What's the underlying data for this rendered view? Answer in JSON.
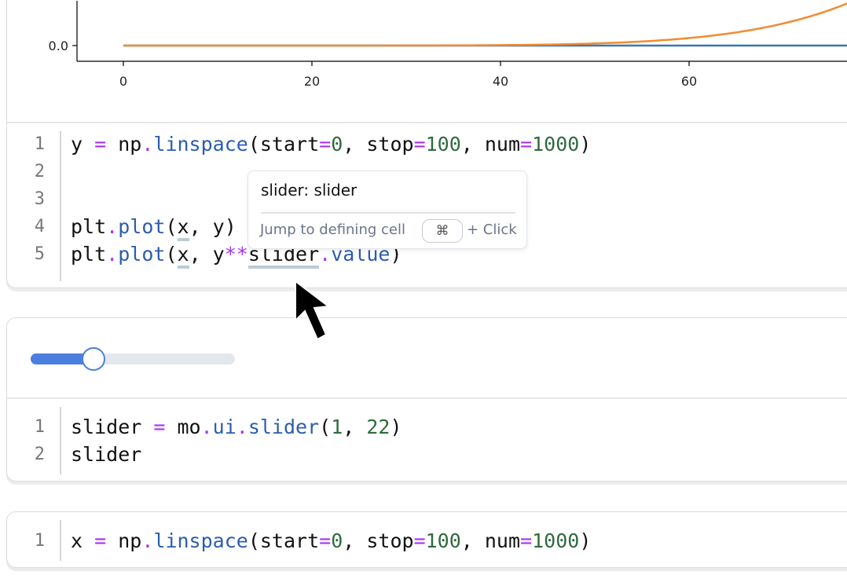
{
  "chart_data": {
    "type": "line",
    "x_ticks": [
      "0",
      "20",
      "40",
      "60"
    ],
    "y_ticks": [
      "0.0"
    ],
    "xlim": [
      -5,
      100
    ],
    "series": [
      {
        "expression": "y",
        "color": "#3a76b0",
        "x": [
          0,
          100
        ],
        "y": [
          0,
          100
        ]
      },
      {
        "expression": "y**slider.value",
        "color": "#f28b30",
        "exponent": 7
      }
    ],
    "grid": false
  },
  "cells": [
    {
      "lines": [
        [
          [
            "y ",
            ""
          ],
          [
            "=",
            "t-op"
          ],
          [
            " np",
            ""
          ],
          [
            ".",
            "t-op"
          ],
          [
            "linspace",
            "t-fn"
          ],
          [
            "(start",
            ""
          ],
          [
            "=",
            "t-op"
          ],
          [
            "0",
            "t-num"
          ],
          [
            ", stop",
            ""
          ],
          [
            "=",
            "t-op"
          ],
          [
            "100",
            "t-num"
          ],
          [
            ", num",
            ""
          ],
          [
            "=",
            "t-op"
          ],
          [
            "1000",
            "t-num"
          ],
          [
            ")",
            ""
          ]
        ],
        [],
        [],
        [
          [
            "plt",
            ""
          ],
          [
            ".",
            "t-op"
          ],
          [
            "plot",
            "t-fn"
          ],
          [
            "(",
            ""
          ],
          [
            "x",
            "t-ul"
          ],
          [
            ", y)",
            ""
          ]
        ],
        [
          [
            "plt",
            ""
          ],
          [
            ".",
            "t-op"
          ],
          [
            "plot",
            "t-fn"
          ],
          [
            "(",
            ""
          ],
          [
            "x",
            "t-ul"
          ],
          [
            ", y",
            ""
          ],
          [
            "**",
            "t-op"
          ],
          [
            "slider",
            "t-ul"
          ],
          [
            ".",
            "t-op"
          ],
          [
            "value",
            "t-fn"
          ],
          [
            ")",
            ""
          ]
        ]
      ]
    },
    {
      "slider": {
        "min": 1,
        "max": 22,
        "value": 7,
        "fill_color": "#4a7fe0"
      },
      "lines": [
        [
          [
            "slider ",
            ""
          ],
          [
            "=",
            "t-op"
          ],
          [
            " mo",
            ""
          ],
          [
            ".",
            "t-op"
          ],
          [
            "ui",
            "t-fn"
          ],
          [
            ".",
            "t-op"
          ],
          [
            "slider",
            "t-fn"
          ],
          [
            "(",
            ""
          ],
          [
            "1",
            "t-num"
          ],
          [
            ", ",
            ""
          ],
          [
            "22",
            "t-num"
          ],
          [
            ")",
            ""
          ]
        ],
        [
          [
            "slider",
            ""
          ]
        ]
      ]
    },
    {
      "lines": [
        [
          [
            "x ",
            ""
          ],
          [
            "=",
            "t-op"
          ],
          [
            " np",
            ""
          ],
          [
            ".",
            "t-op"
          ],
          [
            "linspace",
            "t-fn"
          ],
          [
            "(start",
            ""
          ],
          [
            "=",
            "t-op"
          ],
          [
            "0",
            "t-num"
          ],
          [
            ", stop",
            ""
          ],
          [
            "=",
            "t-op"
          ],
          [
            "100",
            "t-num"
          ],
          [
            ", num",
            ""
          ],
          [
            "=",
            "t-op"
          ],
          [
            "1000",
            "t-num"
          ],
          [
            ")",
            ""
          ]
        ]
      ]
    }
  ],
  "tooltip": {
    "title": "slider: slider",
    "hint": "Jump to defining cell",
    "key": "⌘",
    "click": "+ Click"
  }
}
